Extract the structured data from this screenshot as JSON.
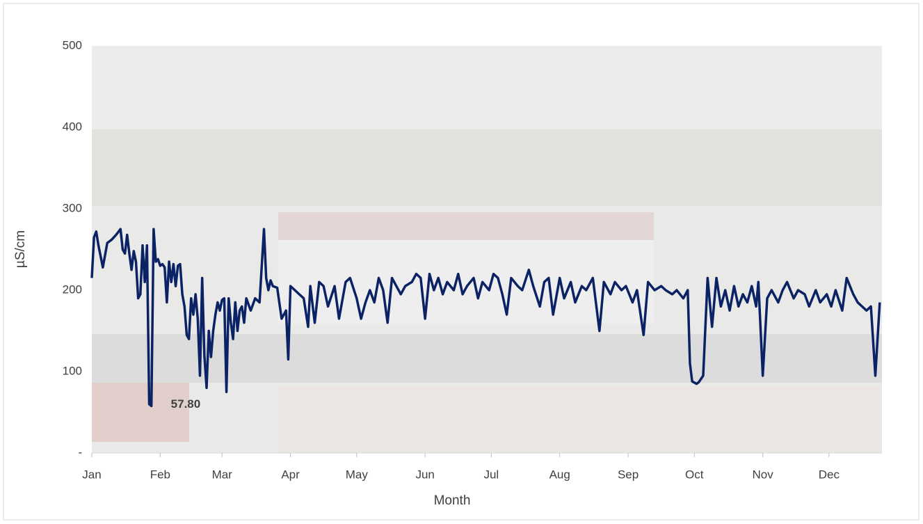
{
  "chart_data": {
    "type": "line",
    "x_label": "Month",
    "y_label": "µS/cm",
    "xlim": [
      0,
      358
    ],
    "xticks": [
      {
        "value": 0,
        "label": "Jan"
      },
      {
        "value": 31,
        "label": "Feb"
      },
      {
        "value": 59,
        "label": "Mar"
      },
      {
        "value": 90,
        "label": "Apr"
      },
      {
        "value": 120,
        "label": "May"
      },
      {
        "value": 151,
        "label": "Jun"
      },
      {
        "value": 181,
        "label": "Jul"
      },
      {
        "value": 212,
        "label": "Aug"
      },
      {
        "value": 243,
        "label": "Sep"
      },
      {
        "value": 273,
        "label": "Oct"
      },
      {
        "value": 304,
        "label": "Nov"
      },
      {
        "value": 334,
        "label": "Dec"
      }
    ],
    "ylim": [
      0,
      500
    ],
    "yticks": [
      {
        "value": 0,
        "label": "-"
      },
      100,
      200,
      300,
      400,
      500
    ],
    "grid": false,
    "x": [
      0,
      1,
      2,
      3,
      5,
      7,
      9,
      11,
      13,
      14,
      15,
      16,
      17,
      18,
      19,
      20,
      21,
      22,
      23,
      24,
      25,
      26,
      27,
      28,
      29,
      30,
      31,
      32,
      33,
      34,
      35,
      36,
      37,
      38,
      39,
      40,
      41,
      42,
      43,
      44,
      45,
      46,
      47,
      48,
      49,
      50,
      51,
      52,
      53,
      54,
      55,
      56,
      57,
      58,
      59,
      60,
      61,
      62,
      63,
      64,
      65,
      66,
      67,
      68,
      69,
      70,
      72,
      74,
      76,
      78,
      79,
      80,
      81,
      82,
      84,
      86,
      88,
      89,
      90,
      92,
      94,
      96,
      98,
      99,
      101,
      103,
      105,
      107,
      110,
      112,
      115,
      117,
      120,
      122,
      124,
      126,
      128,
      130,
      132,
      134,
      136,
      138,
      140,
      142,
      145,
      147,
      149,
      151,
      153,
      155,
      157,
      159,
      161,
      164,
      166,
      168,
      170,
      173,
      175,
      177,
      180,
      182,
      184,
      186,
      188,
      190,
      193,
      195,
      198,
      200,
      203,
      205,
      207,
      209,
      212,
      214,
      217,
      219,
      222,
      224,
      227,
      230,
      232,
      235,
      237,
      240,
      242,
      245,
      247,
      250,
      252,
      255,
      258,
      260,
      263,
      265,
      268,
      270,
      271,
      272,
      274,
      275,
      277,
      279,
      281,
      283,
      285,
      287,
      289,
      291,
      293,
      295,
      297,
      299,
      301,
      302,
      304,
      306,
      308,
      311,
      313,
      315,
      318,
      320,
      323,
      325,
      328,
      330,
      333,
      335,
      337,
      340,
      342,
      345,
      347,
      349,
      351,
      353,
      355,
      357
    ],
    "series": [
      {
        "color": "#0b2265",
        "values": [
          215,
          265,
          272,
          255,
          228,
          258,
          262,
          268,
          275,
          250,
          245,
          268,
          245,
          225,
          248,
          235,
          190,
          195,
          255,
          210,
          255,
          60,
          57.8,
          275,
          235,
          238,
          230,
          232,
          228,
          185,
          235,
          210,
          232,
          205,
          230,
          232,
          195,
          180,
          145,
          140,
          190,
          170,
          195,
          165,
          95,
          215,
          120,
          80,
          150,
          118,
          150,
          170,
          185,
          175,
          188,
          190,
          75,
          190,
          160,
          140,
          185,
          150,
          175,
          180,
          160,
          190,
          175,
          190,
          185,
          275,
          215,
          200,
          212,
          205,
          203,
          165,
          175,
          115,
          205,
          200,
          195,
          190,
          155,
          205,
          160,
          210,
          205,
          180,
          205,
          165,
          210,
          215,
          190,
          165,
          185,
          200,
          185,
          215,
          200,
          160,
          215,
          205,
          195,
          205,
          210,
          220,
          215,
          165,
          220,
          200,
          215,
          195,
          210,
          200,
          220,
          195,
          205,
          215,
          190,
          210,
          200,
          220,
          215,
          195,
          170,
          215,
          205,
          200,
          225,
          205,
          180,
          210,
          215,
          170,
          215,
          190,
          210,
          185,
          205,
          200,
          215,
          150,
          210,
          195,
          210,
          200,
          205,
          185,
          200,
          145,
          210,
          200,
          205,
          200,
          195,
          200,
          190,
          200,
          110,
          88,
          85,
          87,
          95,
          215,
          155,
          215,
          180,
          200,
          175,
          205,
          180,
          195,
          185,
          205,
          180,
          210,
          95,
          190,
          200,
          185,
          200,
          210,
          190,
          200,
          195,
          180,
          200,
          185,
          195,
          180,
          200,
          175,
          215,
          195,
          185,
          180,
          175,
          180,
          95,
          185
        ]
      }
    ],
    "annotations": [
      {
        "text": "57.80",
        "x": 27,
        "y": 57.8
      }
    ]
  }
}
